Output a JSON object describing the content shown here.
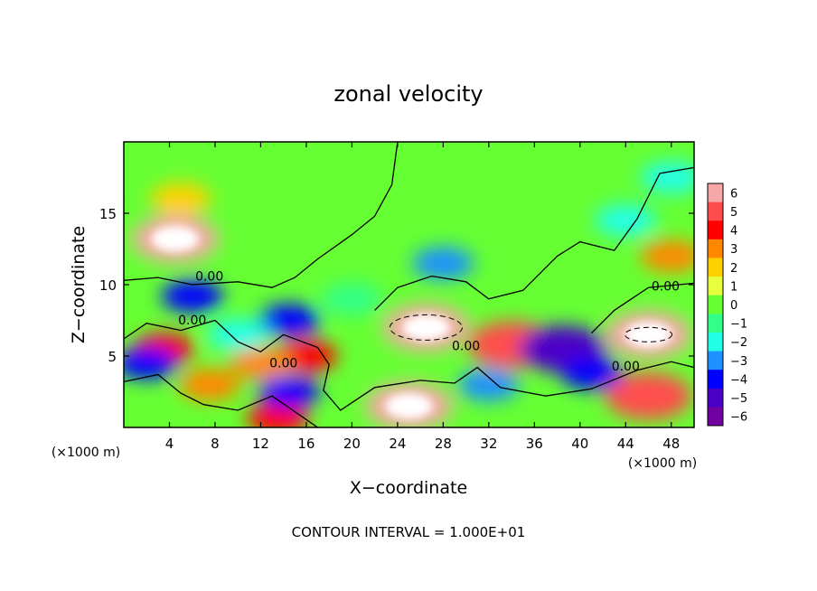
{
  "chart_data": {
    "type": "heatmap",
    "title": "zonal velocity",
    "xlabel": "X−coordinate",
    "ylabel": "Z−coordinate",
    "x_unit": "(×1000 m)",
    "y_unit": "(×1000 m)",
    "footer": "CONTOUR INTERVAL = 1.000E+01",
    "xlim": [
      0,
      50
    ],
    "ylim": [
      0,
      20
    ],
    "x_ticks": [
      4,
      8,
      12,
      16,
      20,
      24,
      28,
      32,
      36,
      40,
      44,
      48
    ],
    "y_ticks": [
      5,
      10,
      15
    ],
    "colorbar": {
      "range": [
        -6,
        6
      ],
      "labels": [
        "6",
        "5",
        "4",
        "3",
        "2",
        "1",
        "0",
        "−1",
        "−2",
        "−3",
        "−4",
        "−5",
        "−6"
      ],
      "colors": [
        "#f6a8a8",
        "#ff4d4d",
        "#ff0000",
        "#ff8800",
        "#ffd000",
        "#e6ff3f",
        "#66ff33",
        "#33ff88",
        "#22ffe6",
        "#1e90ff",
        "#0000ff",
        "#4b00c8",
        "#7000a0"
      ]
    },
    "contour_label": "0.00",
    "features": [
      {
        "kind": "blob",
        "x": 4.5,
        "z": 13.2,
        "value": 6
      },
      {
        "kind": "blob",
        "x": 26.5,
        "z": 7.0,
        "value": 6
      },
      {
        "kind": "blob",
        "x": 46,
        "z": 6.5,
        "value": 6
      },
      {
        "kind": "blob",
        "x": 25,
        "z": 1.5,
        "value": 6
      },
      {
        "kind": "blob",
        "x": 46,
        "z": 2.2,
        "value": 5
      },
      {
        "kind": "blob",
        "x": 34,
        "z": 5.8,
        "value": 5
      },
      {
        "kind": "blob",
        "x": 16,
        "z": 5.0,
        "value": 4
      },
      {
        "kind": "blob",
        "x": 3.5,
        "z": 5.5,
        "value": 4
      },
      {
        "kind": "blob",
        "x": 7.5,
        "z": 3.0,
        "value": 3
      },
      {
        "kind": "blob",
        "x": 12,
        "z": 4.5,
        "value": 3
      },
      {
        "kind": "blob",
        "x": 13.5,
        "z": 0.6,
        "value": 4
      },
      {
        "kind": "blob",
        "x": 48,
        "z": 12,
        "value": 3
      },
      {
        "kind": "blob",
        "x": 5,
        "z": 16,
        "value": 2
      },
      {
        "kind": "blob",
        "x": 20,
        "z": 9,
        "value": -1
      },
      {
        "kind": "blob",
        "x": 28,
        "z": 11.5,
        "value": -3
      },
      {
        "kind": "blob",
        "x": 6,
        "z": 9.2,
        "value": -4
      },
      {
        "kind": "blob",
        "x": 2,
        "z": 4.5,
        "value": -4
      },
      {
        "kind": "blob",
        "x": 14.5,
        "z": 7.5,
        "value": -4
      },
      {
        "kind": "blob",
        "x": 14.5,
        "z": 2.5,
        "value": -4
      },
      {
        "kind": "blob",
        "x": 38.5,
        "z": 5.5,
        "value": -5
      },
      {
        "kind": "blob",
        "x": 41,
        "z": 3.8,
        "value": -4
      },
      {
        "kind": "blob",
        "x": 32,
        "z": 3.0,
        "value": -3
      },
      {
        "kind": "blob",
        "x": 10,
        "z": 6.5,
        "value": -2
      },
      {
        "kind": "blob",
        "x": 44,
        "z": 14.5,
        "value": -2
      },
      {
        "kind": "blob",
        "x": 48,
        "z": 17.5,
        "value": -2
      }
    ]
  }
}
